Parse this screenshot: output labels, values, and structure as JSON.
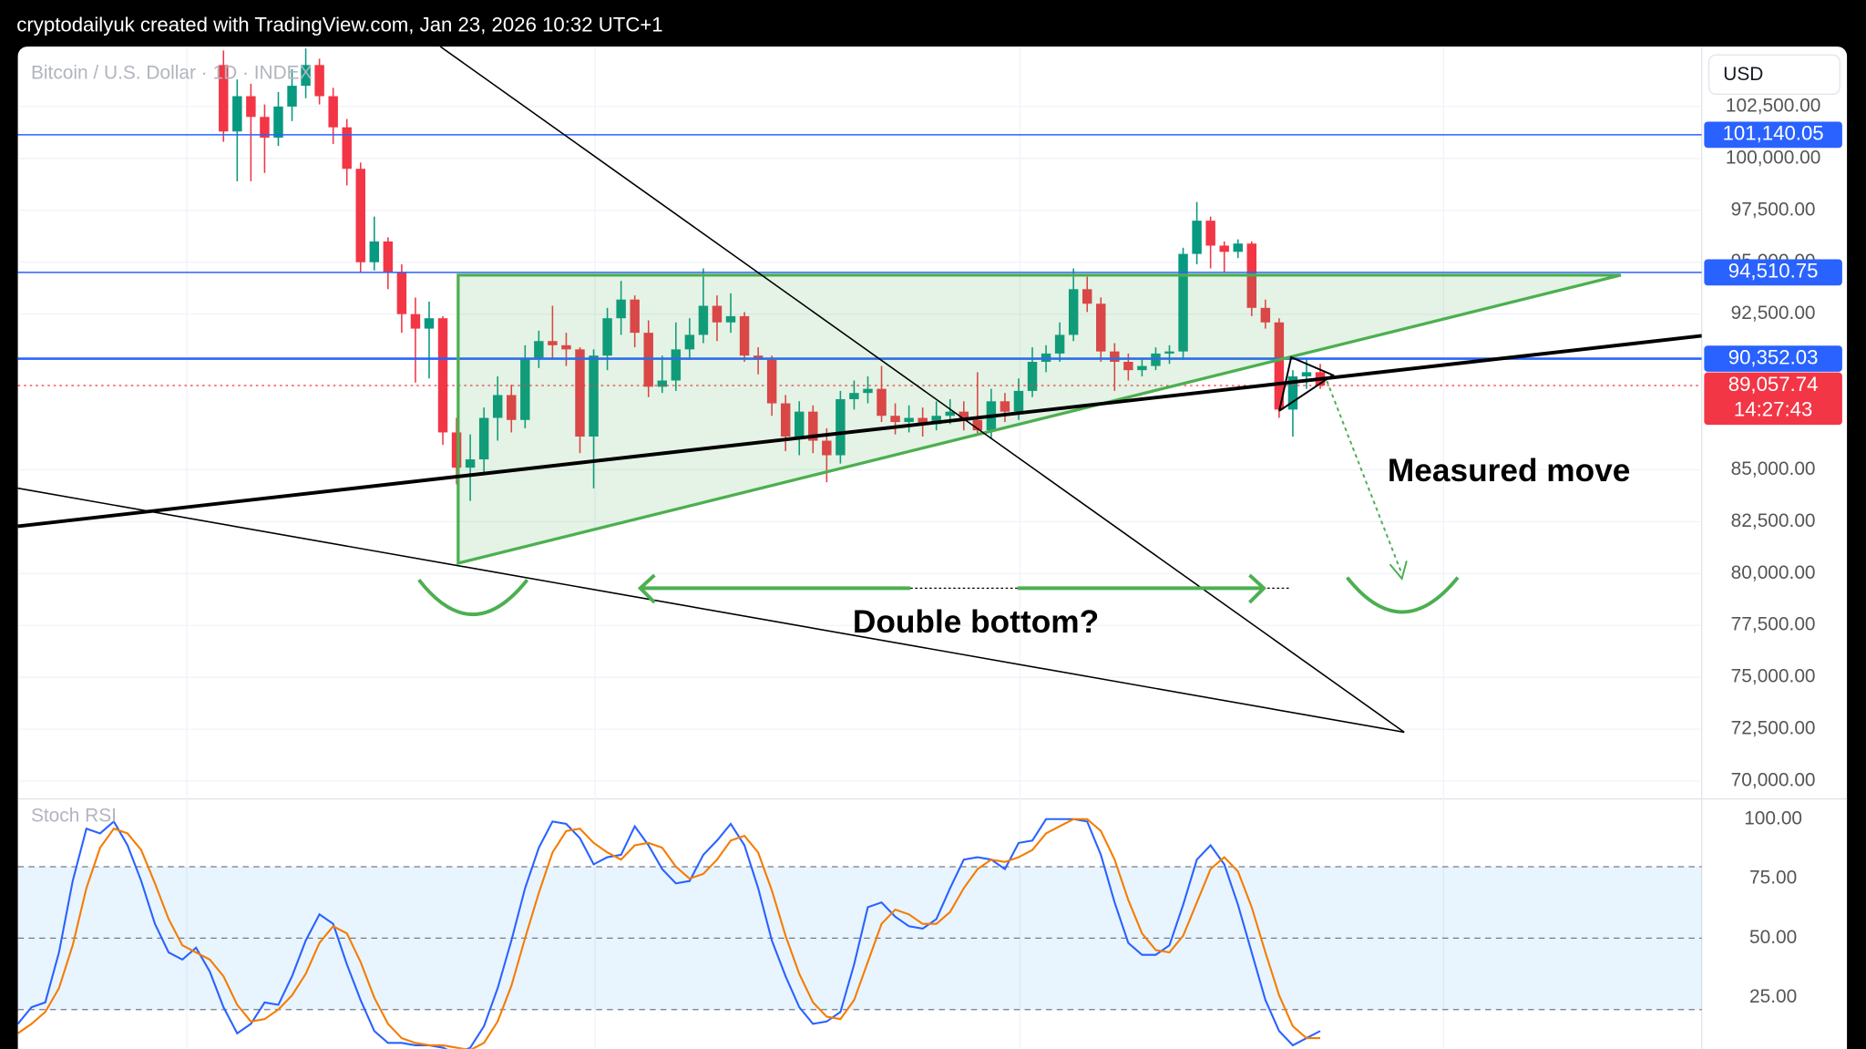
{
  "header": "cryptodailyuk created with TradingView.com, Jan 23, 2026 10:32 UTC+1",
  "chart_data": [
    {
      "type": "candlestick",
      "title": "Bitcoin / U.S. Dollar · 1D · INDEX",
      "currency": "USD",
      "open": [
        104500,
        101300,
        103000,
        102000,
        101000,
        102500,
        103500,
        104500,
        103000,
        101500,
        99500,
        95000,
        96000,
        94500,
        92500,
        91800,
        92300,
        86800,
        85100,
        85500,
        87500,
        88600,
        87400,
        90400,
        91200,
        91000,
        90800,
        86600,
        90500,
        92300,
        93200,
        91600,
        89000,
        89300,
        90800,
        91500,
        92900,
        92100,
        92400,
        90500,
        90300,
        88200,
        86600,
        87800,
        86400,
        85700,
        88400,
        88700,
        88900,
        87600,
        87300,
        87500,
        87200,
        87600,
        87800,
        87400,
        86900,
        88300,
        87800,
        88800,
        90200,
        90600,
        91500,
        93700,
        93000,
        90700,
        90200,
        89800,
        90000,
        90600,
        90700,
        95400,
        97000,
        95800,
        95500,
        95900,
        92800,
        92100,
        87900,
        89500,
        89700
      ],
      "high": [
        105200,
        103800,
        103600,
        102600,
        103200,
        104300,
        105300,
        104800,
        103400,
        101900,
        99800,
        97200,
        96200,
        94900,
        93300,
        93100,
        92400,
        87500,
        86700,
        88000,
        89500,
        89100,
        91000,
        91700,
        92900,
        91600,
        90900,
        90800,
        92800,
        94100,
        93400,
        92200,
        90500,
        92100,
        92300,
        94700,
        93400,
        93500,
        92600,
        90900,
        90500,
        88600,
        88300,
        88100,
        87000,
        88800,
        89300,
        89500,
        90000,
        88200,
        88100,
        88000,
        88300,
        88400,
        88300,
        89700,
        88900,
        88700,
        89400,
        90900,
        91000,
        92100,
        94700,
        94300,
        93300,
        91100,
        90600,
        90400,
        90900,
        91000,
        95700,
        97900,
        97200,
        96000,
        96100,
        96000,
        93200,
        92300,
        89800,
        90300,
        90100
      ],
      "low": [
        100800,
        98900,
        98900,
        99300,
        100600,
        101800,
        102900,
        102600,
        100700,
        98700,
        94500,
        94600,
        93700,
        91600,
        89200,
        89400,
        86200,
        84300,
        83500,
        84900,
        86400,
        86800,
        87000,
        89900,
        90300,
        90000,
        85800,
        84100,
        89800,
        91500,
        90900,
        88500,
        88700,
        88800,
        90300,
        91100,
        91200,
        91600,
        90200,
        89600,
        87600,
        85900,
        85700,
        85800,
        84400,
        85300,
        87900,
        88200,
        87300,
        86700,
        86800,
        86600,
        86900,
        87200,
        86900,
        86700,
        86500,
        87300,
        87400,
        88500,
        89700,
        90200,
        91200,
        92600,
        90200,
        88800,
        89300,
        89500,
        89800,
        90100,
        90300,
        94900,
        94700,
        94500,
        95200,
        92400,
        91800,
        87500,
        86600,
        88900,
        88900
      ],
      "close": [
        101300,
        103000,
        102000,
        101000,
        102500,
        103500,
        104500,
        103000,
        101500,
        99500,
        95000,
        96000,
        94500,
        92500,
        91800,
        92300,
        86800,
        85100,
        85500,
        87500,
        88600,
        87400,
        90400,
        91200,
        91000,
        90800,
        86600,
        90500,
        92300,
        93200,
        91600,
        89000,
        89300,
        90800,
        91500,
        92900,
        92100,
        92400,
        90500,
        90300,
        88200,
        86600,
        87800,
        86400,
        85700,
        88400,
        88700,
        88900,
        87600,
        87300,
        87500,
        87200,
        87600,
        87800,
        87400,
        86900,
        88300,
        87800,
        88800,
        90200,
        90600,
        91500,
        93700,
        93000,
        90700,
        90200,
        89800,
        90000,
        90600,
        90700,
        95400,
        97000,
        95800,
        95500,
        95900,
        92800,
        92100,
        87900,
        89500,
        89700,
        89057.74
      ],
      "up_color": "#089981",
      "down_color": "#f23645",
      "ylim": [
        69200,
        105390
      ],
      "yticks": [
        {
          "value": 102500,
          "label": "102,500.00"
        },
        {
          "value": 100000,
          "label": "100,000.00"
        },
        {
          "value": 97500,
          "label": "97,500.00"
        },
        {
          "value": 95000,
          "label": "95,000.00"
        },
        {
          "value": 92500,
          "label": "92,500.00"
        },
        {
          "value": 85000,
          "label": "85,000.00"
        },
        {
          "value": 82500,
          "label": "82,500.00"
        },
        {
          "value": 80000,
          "label": "80,000.00"
        },
        {
          "value": 77500,
          "label": "77,500.00"
        },
        {
          "value": 75000,
          "label": "75,000.00"
        },
        {
          "value": 72500,
          "label": "72,500.00"
        },
        {
          "value": 70000,
          "label": "70,000.00"
        }
      ],
      "grid": true,
      "levels": [
        {
          "value": 101140.05,
          "label": "101,140.05",
          "color": "#2962ff"
        },
        {
          "value": 94510.75,
          "label": "94,510.75",
          "color": "#2962ff"
        },
        {
          "value": 90352.03,
          "label": "90,352.03",
          "color": "#2962ff"
        },
        {
          "value": 89057.74,
          "label": "89,057.74",
          "color": "#f23645"
        }
      ],
      "countdown": "14:27:43",
      "annotations": [
        "Measured move",
        "Double bottom?"
      ]
    },
    {
      "type": "line",
      "title": "Stoch RSI",
      "series": [
        {
          "color": "#2962ff",
          "values": [
            14,
            21,
            23,
            44,
            74,
            96,
            94,
            99,
            89,
            74,
            56,
            44,
            41,
            46,
            36,
            21,
            10,
            14,
            23,
            22,
            34,
            49,
            60,
            56,
            39,
            24,
            11,
            6,
            6,
            5,
            5,
            4,
            1.5,
            4,
            13,
            29,
            49,
            71,
            88,
            99,
            98,
            92,
            81,
            84,
            85,
            97,
            89,
            79,
            73,
            74,
            85,
            91,
            98,
            89,
            71,
            49,
            34,
            21,
            14,
            15,
            19,
            39,
            63,
            65,
            59,
            55,
            54,
            58,
            71,
            83,
            84,
            83,
            79,
            90,
            91,
            100,
            100,
            100,
            99,
            85,
            65,
            48,
            43,
            43,
            47,
            64,
            83,
            89,
            81,
            64,
            44,
            24,
            11,
            5,
            8,
            11
          ]
        },
        {
          "color": "#f57c00",
          "values": [
            10,
            14,
            19,
            29,
            47,
            71,
            88,
            96,
            94,
            87,
            73,
            58,
            47,
            44,
            41,
            34,
            22,
            15,
            16,
            20,
            26,
            35,
            48,
            55,
            52,
            40,
            25,
            14,
            8,
            6,
            5,
            5,
            4,
            3,
            6,
            15,
            30,
            50,
            69,
            86,
            95,
            96,
            90,
            86,
            83,
            89,
            90,
            88,
            80,
            75,
            77,
            83,
            91,
            93,
            86,
            70,
            51,
            35,
            23,
            17,
            16,
            24,
            40,
            56,
            62,
            60,
            56,
            56,
            61,
            71,
            79,
            83,
            82,
            84,
            87,
            94,
            97,
            100,
            100,
            95,
            83,
            66,
            52,
            45,
            44,
            51,
            65,
            79,
            84,
            78,
            63,
            44,
            26,
            13,
            8,
            8
          ]
        }
      ],
      "ylim": [
        3.5,
        108
      ],
      "yticks": [
        {
          "value": 100,
          "label": "100.00"
        },
        {
          "value": 75,
          "label": "75.00"
        },
        {
          "value": 50,
          "label": "50.00"
        },
        {
          "value": 25,
          "label": "25.00"
        }
      ],
      "bands": [
        20,
        50,
        80
      ]
    }
  ]
}
